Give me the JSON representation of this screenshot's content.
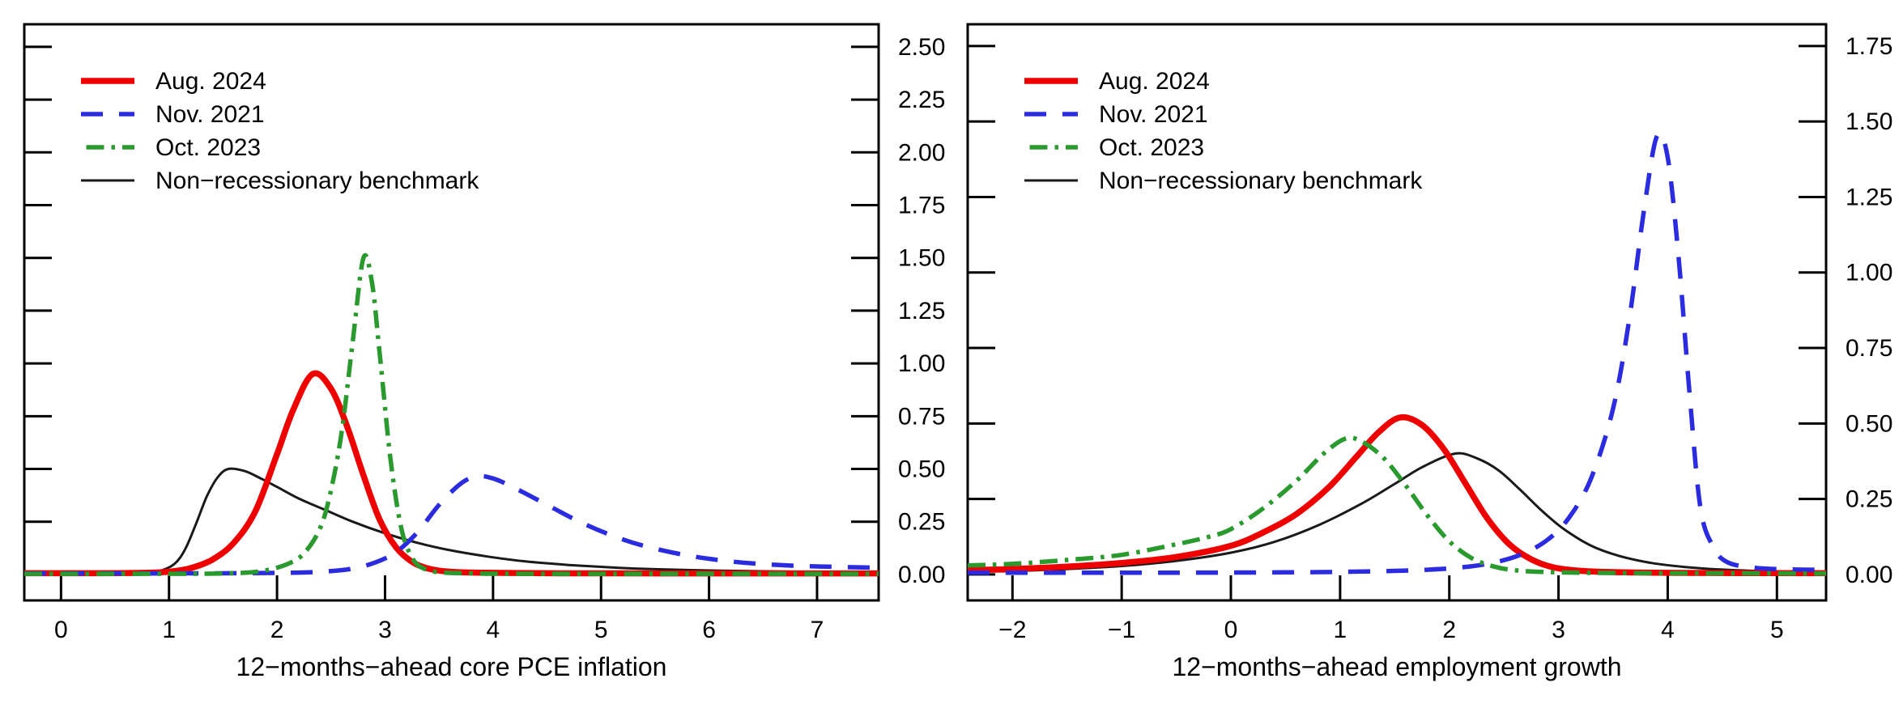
{
  "figure": {
    "background": "#ffffff",
    "axis_color": "#000000",
    "text_color": "#000000"
  },
  "chart_data": [
    {
      "type": "line",
      "title": "",
      "xlabel": "12−months−ahead core PCE inflation",
      "ylabel": "",
      "xlim": [
        -0.34,
        7.57
      ],
      "ylim": [
        -0.123,
        2.607
      ],
      "grid": false,
      "y_axis_side": "right",
      "legend_position": "top-left",
      "x_ticks": [
        0,
        1,
        2,
        3,
        4,
        5,
        6,
        7
      ],
      "x_tick_labels": [
        "0",
        "1",
        "2",
        "3",
        "4",
        "5",
        "6",
        "7"
      ],
      "y_ticks": [
        0,
        0.25,
        0.5,
        0.75,
        1,
        1.25,
        1.5,
        1.75,
        2,
        2.25,
        2.5
      ],
      "y_tick_labels": [
        "0.00",
        "0.25",
        "0.50",
        "0.75",
        "1.00",
        "1.25",
        "1.50",
        "1.75",
        "2.00",
        "2.25",
        "2.50"
      ],
      "draw_order": [
        3,
        0,
        1,
        2
      ],
      "series": [
        {
          "name": "Aug. 2024",
          "color": "#EE0000",
          "line_width": 7.5,
          "dash": null,
          "peak": {
            "x": 2.33,
            "y": 0.95
          },
          "points": [
            [
              -0.34,
              0.006
            ],
            [
              0.4,
              0.006
            ],
            [
              0.8,
              0.008
            ],
            [
              1.0,
              0.013
            ],
            [
              1.2,
              0.03
            ],
            [
              1.4,
              0.07
            ],
            [
              1.6,
              0.15
            ],
            [
              1.8,
              0.3
            ],
            [
              2.0,
              0.57
            ],
            [
              2.15,
              0.78
            ],
            [
              2.33,
              0.95
            ],
            [
              2.5,
              0.88
            ],
            [
              2.65,
              0.7
            ],
            [
              2.8,
              0.47
            ],
            [
              2.95,
              0.26
            ],
            [
              3.1,
              0.13
            ],
            [
              3.25,
              0.06
            ],
            [
              3.4,
              0.028
            ],
            [
              3.6,
              0.013
            ],
            [
              3.9,
              0.008
            ],
            [
              4.5,
              0.006
            ],
            [
              5.5,
              0.005
            ],
            [
              7.57,
              0.005
            ]
          ]
        },
        {
          "name": "Nov. 2021",
          "color": "#2B2BDF",
          "line_width": 5.5,
          "dash": [
            27,
            20
          ],
          "peak": {
            "x": 3.85,
            "y": 0.47
          },
          "points": [
            [
              -0.34,
              0.005
            ],
            [
              0.6,
              0.005
            ],
            [
              1.6,
              0.006
            ],
            [
              2.2,
              0.009
            ],
            [
              2.5,
              0.016
            ],
            [
              2.7,
              0.028
            ],
            [
              2.9,
              0.055
            ],
            [
              3.1,
              0.105
            ],
            [
              3.3,
              0.2
            ],
            [
              3.5,
              0.33
            ],
            [
              3.7,
              0.43
            ],
            [
              3.85,
              0.465
            ],
            [
              4.0,
              0.455
            ],
            [
              4.2,
              0.41
            ],
            [
              4.5,
              0.33
            ],
            [
              4.8,
              0.25
            ],
            [
              5.1,
              0.185
            ],
            [
              5.4,
              0.135
            ],
            [
              5.8,
              0.09
            ],
            [
              6.2,
              0.062
            ],
            [
              6.6,
              0.046
            ],
            [
              7.0,
              0.038
            ],
            [
              7.57,
              0.032
            ]
          ]
        },
        {
          "name": "Oct. 2023",
          "color": "#2A9A2F",
          "line_width": 5.5,
          "dash": [
            22,
            9,
            4.5,
            9
          ],
          "peak": {
            "x": 2.8,
            "y": 1.5
          },
          "points": [
            [
              -0.34,
              0.003
            ],
            [
              1.0,
              0.003
            ],
            [
              1.4,
              0.004
            ],
            [
              1.7,
              0.008
            ],
            [
              1.9,
              0.02
            ],
            [
              2.1,
              0.05
            ],
            [
              2.25,
              0.1
            ],
            [
              2.4,
              0.22
            ],
            [
              2.5,
              0.4
            ],
            [
              2.6,
              0.68
            ],
            [
              2.7,
              1.1
            ],
            [
              2.8,
              1.5
            ],
            [
              2.88,
              1.38
            ],
            [
              2.95,
              1.05
            ],
            [
              3.05,
              0.55
            ],
            [
              3.15,
              0.22
            ],
            [
              3.25,
              0.08
            ],
            [
              3.35,
              0.03
            ],
            [
              3.5,
              0.011
            ],
            [
              3.8,
              0.005
            ],
            [
              4.5,
              0.003
            ],
            [
              7.57,
              0.003
            ]
          ]
        },
        {
          "name": "Non−recessionary benchmark",
          "color": "#1A1A1A",
          "line_width": 3,
          "dash": null,
          "peak": {
            "x": 1.55,
            "y": 0.5
          },
          "points": [
            [
              -0.34,
              0.002
            ],
            [
              0.4,
              0.003
            ],
            [
              0.7,
              0.006
            ],
            [
              0.9,
              0.015
            ],
            [
              1.05,
              0.05
            ],
            [
              1.15,
              0.12
            ],
            [
              1.25,
              0.24
            ],
            [
              1.35,
              0.37
            ],
            [
              1.45,
              0.46
            ],
            [
              1.55,
              0.5
            ],
            [
              1.7,
              0.49
            ],
            [
              1.85,
              0.455
            ],
            [
              2.0,
              0.415
            ],
            [
              2.2,
              0.36
            ],
            [
              2.45,
              0.305
            ],
            [
              2.7,
              0.25
            ],
            [
              3.0,
              0.195
            ],
            [
              3.3,
              0.15
            ],
            [
              3.6,
              0.115
            ],
            [
              3.95,
              0.085
            ],
            [
              4.3,
              0.062
            ],
            [
              4.7,
              0.045
            ],
            [
              5.1,
              0.033
            ],
            [
              5.5,
              0.025
            ],
            [
              6.0,
              0.019
            ],
            [
              6.5,
              0.015
            ],
            [
              7.0,
              0.012
            ],
            [
              7.57,
              0.01
            ]
          ]
        }
      ]
    },
    {
      "type": "line",
      "title": "",
      "xlabel": "12−months−ahead employment growth",
      "ylabel": "",
      "xlim": [
        -2.41,
        5.45
      ],
      "ylim": [
        -0.086,
        1.822
      ],
      "grid": false,
      "y_axis_side": "right",
      "legend_position": "top-left",
      "x_ticks": [
        -2,
        -1,
        0,
        1,
        2,
        3,
        4,
        5
      ],
      "x_tick_labels": [
        "−2",
        "−1",
        "0",
        "1",
        "2",
        "3",
        "4",
        "5"
      ],
      "y_ticks": [
        0,
        0.25,
        0.5,
        0.75,
        1,
        1.25,
        1.5,
        1.75
      ],
      "y_tick_labels": [
        "0.00",
        "0.25",
        "0.50",
        "0.75",
        "1.00",
        "1.25",
        "1.50",
        "1.75"
      ],
      "draw_order": [
        3,
        0,
        1,
        2
      ],
      "series": [
        {
          "name": "Aug. 2024",
          "color": "#EE0000",
          "line_width": 7.5,
          "dash": null,
          "peak": {
            "x": 1.55,
            "y": 0.52
          },
          "points": [
            [
              -2.41,
              0.015
            ],
            [
              -2.0,
              0.018
            ],
            [
              -1.5,
              0.026
            ],
            [
              -1.0,
              0.038
            ],
            [
              -0.5,
              0.058
            ],
            [
              0.0,
              0.095
            ],
            [
              0.3,
              0.14
            ],
            [
              0.6,
              0.2
            ],
            [
              0.9,
              0.29
            ],
            [
              1.15,
              0.39
            ],
            [
              1.35,
              0.47
            ],
            [
              1.55,
              0.52
            ],
            [
              1.75,
              0.495
            ],
            [
              1.95,
              0.415
            ],
            [
              2.15,
              0.3
            ],
            [
              2.35,
              0.185
            ],
            [
              2.55,
              0.1
            ],
            [
              2.75,
              0.05
            ],
            [
              2.95,
              0.024
            ],
            [
              3.2,
              0.012
            ],
            [
              3.6,
              0.007
            ],
            [
              4.2,
              0.005
            ],
            [
              5.45,
              0.004
            ]
          ]
        },
        {
          "name": "Nov. 2021",
          "color": "#2B2BDF",
          "line_width": 5.5,
          "dash": [
            27,
            20
          ],
          "peak": {
            "x": 3.9,
            "y": 1.45
          },
          "points": [
            [
              -2.41,
              0.006
            ],
            [
              -1.5,
              0.006
            ],
            [
              -0.5,
              0.006
            ],
            [
              0.5,
              0.007
            ],
            [
              1.1,
              0.009
            ],
            [
              1.6,
              0.013
            ],
            [
              2.0,
              0.02
            ],
            [
              2.35,
              0.035
            ],
            [
              2.65,
              0.065
            ],
            [
              2.9,
              0.115
            ],
            [
              3.1,
              0.19
            ],
            [
              3.3,
              0.32
            ],
            [
              3.5,
              0.55
            ],
            [
              3.65,
              0.85
            ],
            [
              3.78,
              1.2
            ],
            [
              3.9,
              1.45
            ],
            [
              4.0,
              1.38
            ],
            [
              4.1,
              1.05
            ],
            [
              4.2,
              0.6
            ],
            [
              4.3,
              0.22
            ],
            [
              4.42,
              0.09
            ],
            [
              4.55,
              0.04
            ],
            [
              4.8,
              0.022
            ],
            [
              5.1,
              0.017
            ],
            [
              5.45,
              0.015
            ]
          ]
        },
        {
          "name": "Oct. 2023",
          "color": "#2A9A2F",
          "line_width": 5.5,
          "dash": [
            22,
            9,
            4.5,
            9
          ],
          "peak": {
            "x": 1.05,
            "y": 0.45
          },
          "points": [
            [
              -2.41,
              0.03
            ],
            [
              -2.0,
              0.035
            ],
            [
              -1.5,
              0.048
            ],
            [
              -1.0,
              0.065
            ],
            [
              -0.5,
              0.1
            ],
            [
              -0.2,
              0.125
            ],
            [
              0.0,
              0.15
            ],
            [
              0.3,
              0.22
            ],
            [
              0.6,
              0.31
            ],
            [
              0.85,
              0.4
            ],
            [
              1.05,
              0.45
            ],
            [
              1.2,
              0.44
            ],
            [
              1.4,
              0.385
            ],
            [
              1.6,
              0.295
            ],
            [
              1.8,
              0.195
            ],
            [
              2.0,
              0.11
            ],
            [
              2.2,
              0.055
            ],
            [
              2.4,
              0.027
            ],
            [
              2.6,
              0.014
            ],
            [
              2.9,
              0.008
            ],
            [
              3.4,
              0.005
            ],
            [
              4.2,
              0.004
            ],
            [
              5.45,
              0.003
            ]
          ]
        },
        {
          "name": "Non−recessionary benchmark",
          "color": "#1A1A1A",
          "line_width": 3,
          "dash": null,
          "peak": {
            "x": 2.05,
            "y": 0.4
          },
          "points": [
            [
              -2.41,
              0.009
            ],
            [
              -2.0,
              0.011
            ],
            [
              -1.5,
              0.018
            ],
            [
              -1.0,
              0.028
            ],
            [
              -0.5,
              0.045
            ],
            [
              0.0,
              0.072
            ],
            [
              0.4,
              0.108
            ],
            [
              0.8,
              0.163
            ],
            [
              1.2,
              0.235
            ],
            [
              1.5,
              0.3
            ],
            [
              1.75,
              0.355
            ],
            [
              2.05,
              0.4
            ],
            [
              2.25,
              0.385
            ],
            [
              2.45,
              0.345
            ],
            [
              2.65,
              0.28
            ],
            [
              2.85,
              0.21
            ],
            [
              3.05,
              0.15
            ],
            [
              3.3,
              0.095
            ],
            [
              3.55,
              0.062
            ],
            [
              3.85,
              0.038
            ],
            [
              4.15,
              0.025
            ],
            [
              4.5,
              0.016
            ],
            [
              5.0,
              0.01
            ],
            [
              5.45,
              0.008
            ]
          ]
        }
      ]
    }
  ]
}
